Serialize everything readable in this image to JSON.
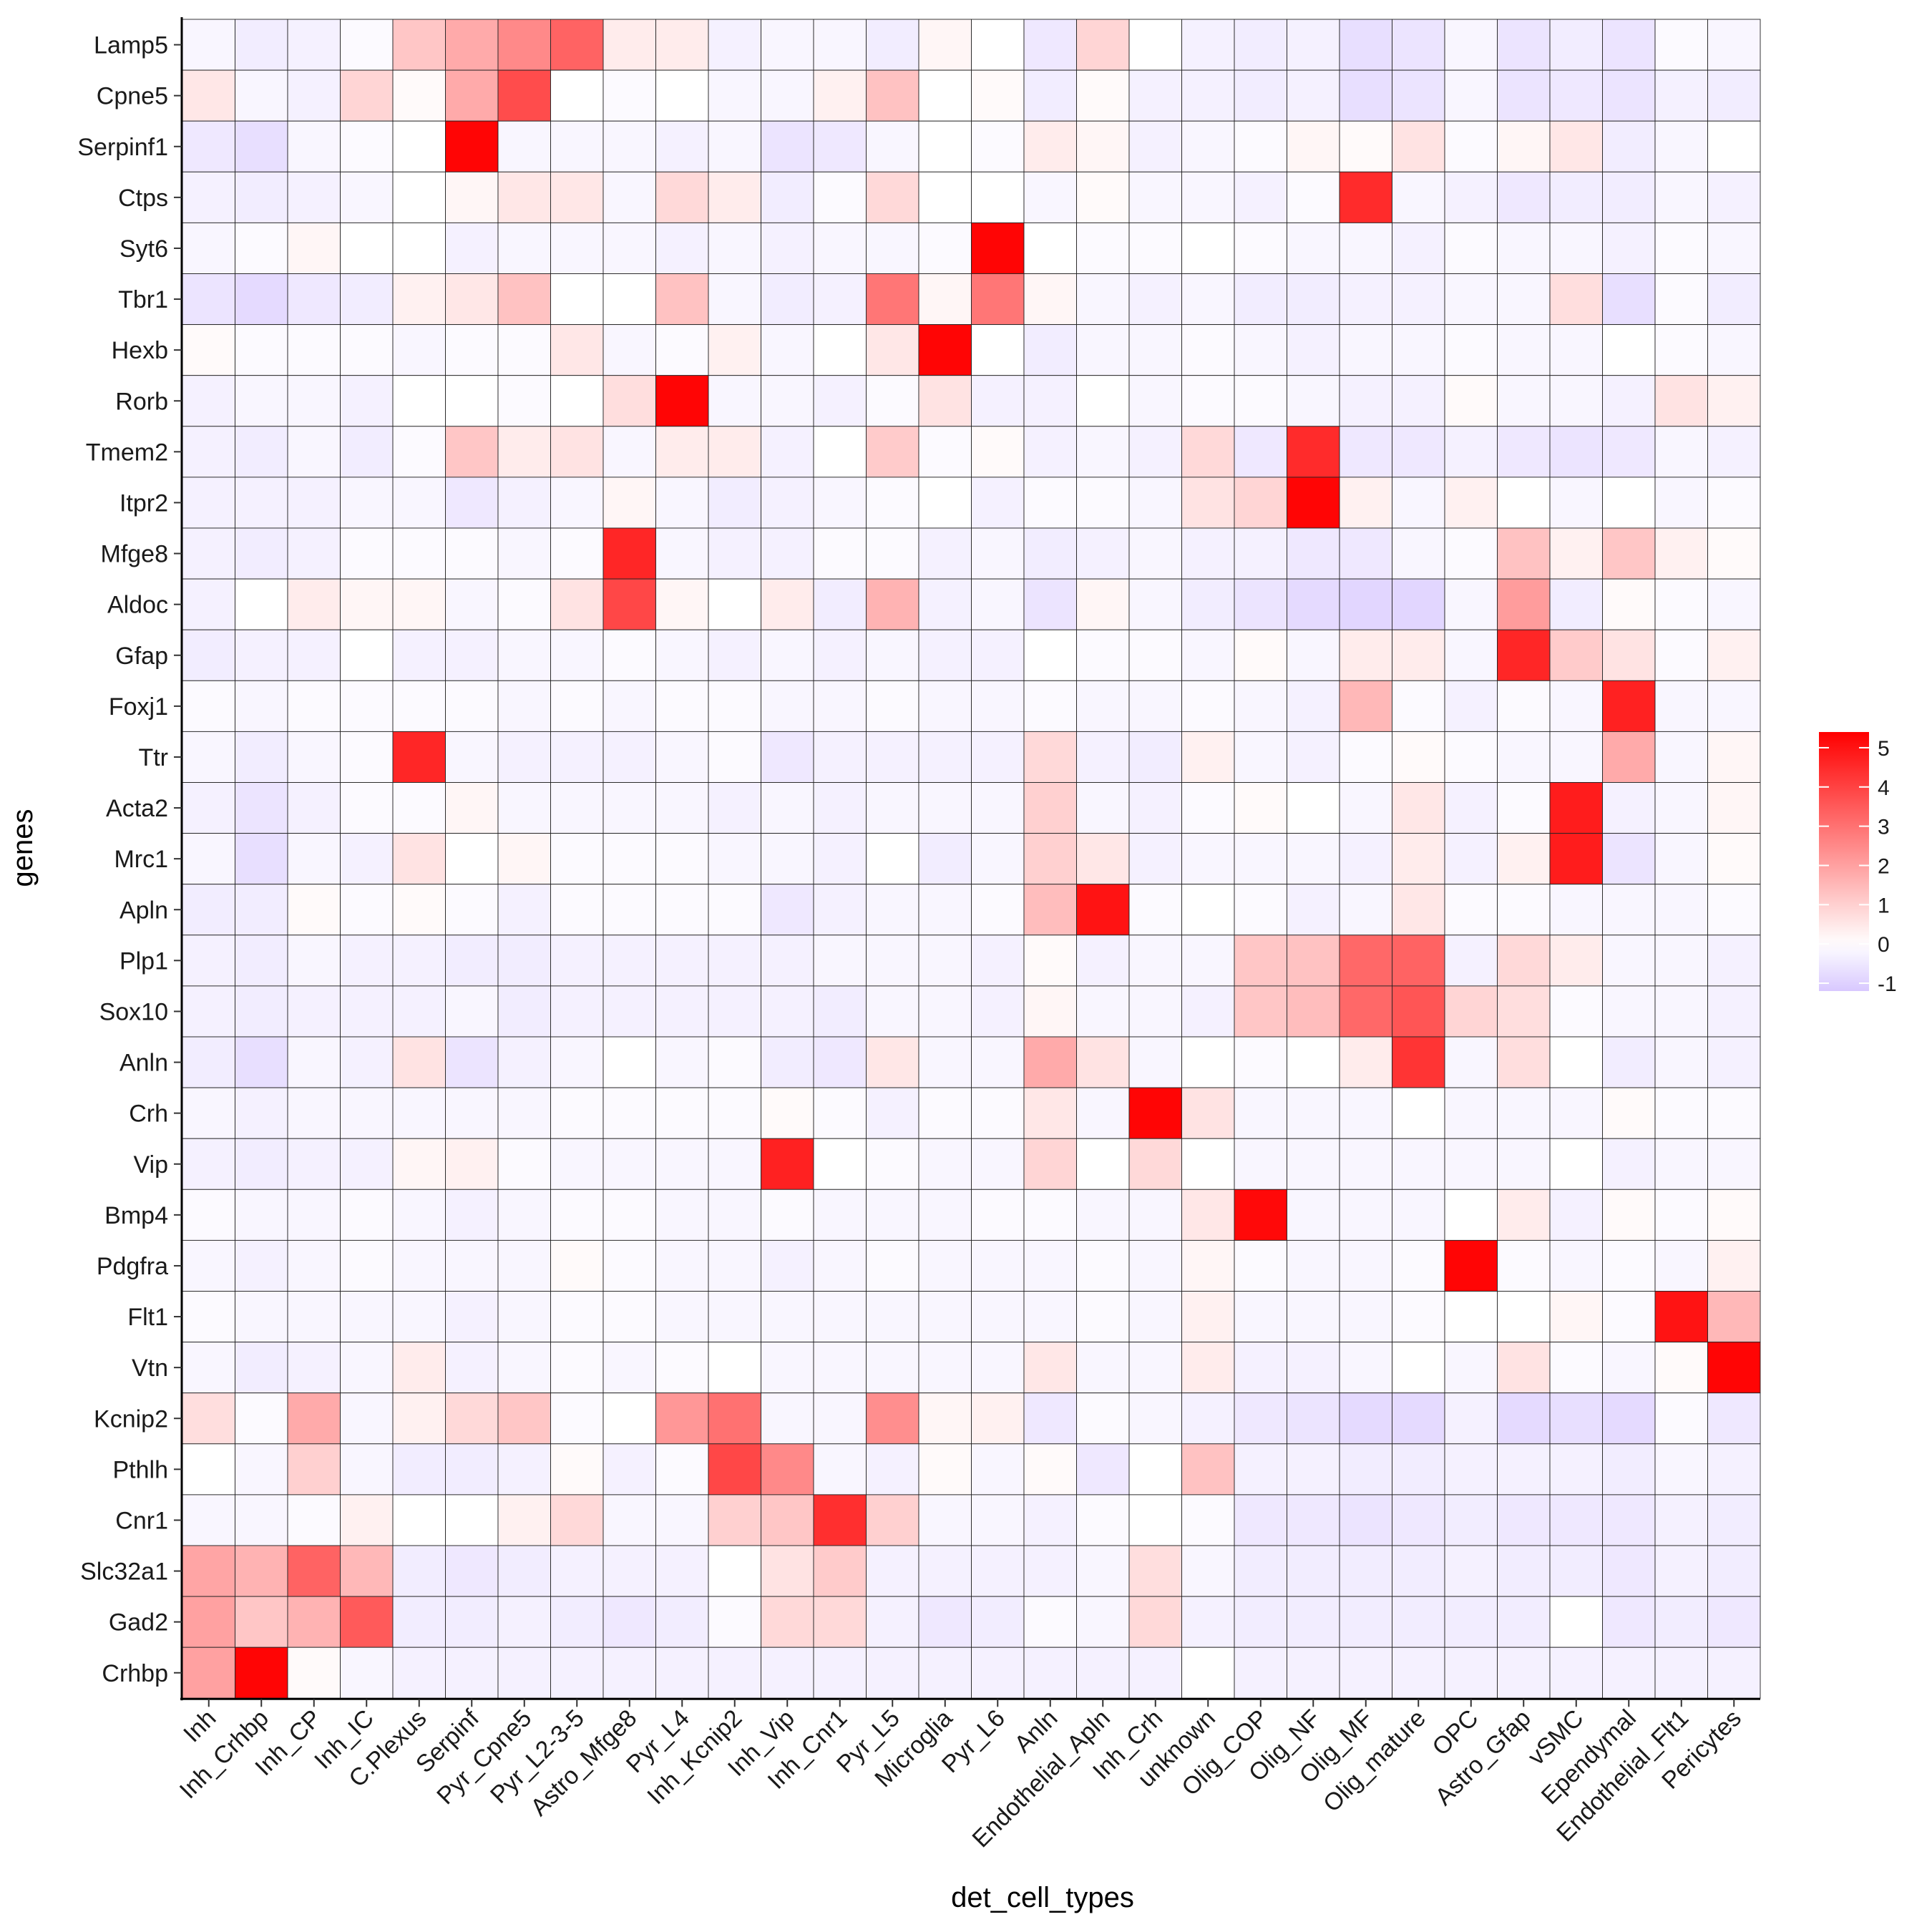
{
  "chart_data": {
    "type": "heatmap",
    "title": "",
    "xlabel": "det_cell_types",
    "ylabel": "genes",
    "grid": true,
    "legend_position": "right",
    "color_scale": {
      "low": "#d8c8ff",
      "mid": "#ffffff",
      "high": "#ff0000",
      "min": -1.2,
      "mid_value": 0,
      "max": 5.4,
      "ticks": [
        5,
        4,
        3,
        2,
        1,
        0,
        -1
      ]
    },
    "x_categories": [
      "Inh",
      "Inh_Crhbp",
      "Inh_CP",
      "Inh_IC",
      "C.Plexus",
      "Serpinf",
      "Pyr_Cpne5",
      "Pyr_L2-3-5",
      "Astro_Mfge8",
      "Pyr_L4",
      "Inh_Kcnip2",
      "Inh_Vip",
      "Inh_Cnr1",
      "Pyr_L5",
      "Microglia",
      "Pyr_L6",
      "Anln",
      "Endothelial_Apln",
      "Inh_Crh",
      "unknown",
      "Olig_COP",
      "Olig_NF",
      "Olig_MF",
      "Olig_mature",
      "OPC",
      "Astro_Gfap",
      "vSMC",
      "Ependymal",
      "Endothelial_Flt1",
      "Pericytes"
    ],
    "y_categories": [
      "Lamp5",
      "Cpne5",
      "Serpinf1",
      "Ctps",
      "Syt6",
      "Tbr1",
      "Hexb",
      "Rorb",
      "Tmem2",
      "Itpr2",
      "Mfge8",
      "Aldoc",
      "Gfap",
      "Foxj1",
      "Ttr",
      "Acta2",
      "Mrc1",
      "Apln",
      "Plp1",
      "Sox10",
      "Anln",
      "Crh",
      "Vip",
      "Bmp4",
      "Pdgfra",
      "Flt1",
      "Vtn",
      "Kcnip2",
      "Pthlh",
      "Cnr1",
      "Slc32a1",
      "Gad2",
      "Crhbp"
    ],
    "values": [
      [
        -0.2,
        -0.4,
        -0.3,
        -0.1,
        1.2,
        1.8,
        2.5,
        3.3,
        0.4,
        0.4,
        -0.3,
        -0.2,
        -0.2,
        -0.4,
        0.2,
        0,
        -0.5,
        0.9,
        0,
        -0.3,
        -0.4,
        -0.3,
        -0.7,
        -0.6,
        -0.2,
        -0.6,
        -0.4,
        -0.6,
        -0.1,
        -0.2
      ],
      [
        0.5,
        -0.2,
        -0.3,
        0.9,
        0.1,
        1.8,
        3.8,
        0,
        -0.1,
        0,
        -0.2,
        -0.2,
        0.3,
        1.3,
        0,
        0.1,
        -0.4,
        0.1,
        -0.3,
        -0.3,
        -0.4,
        -0.3,
        -0.7,
        -0.6,
        -0.2,
        -0.6,
        -0.5,
        -0.6,
        -0.3,
        -0.4
      ],
      [
        -0.5,
        -0.7,
        -0.2,
        -0.1,
        0,
        5.3,
        -0.2,
        -0.2,
        -0.2,
        -0.3,
        -0.2,
        -0.6,
        -0.5,
        -0.2,
        0,
        -0.1,
        0.4,
        0.2,
        -0.3,
        -0.2,
        -0.1,
        0.2,
        0.1,
        0.6,
        -0.1,
        0.2,
        0.5,
        -0.4,
        -0.2,
        0
      ],
      [
        -0.3,
        -0.4,
        -0.3,
        -0.2,
        0,
        0.2,
        0.5,
        0.5,
        -0.2,
        0.8,
        0.4,
        -0.4,
        -0.1,
        0.8,
        0,
        0,
        -0.2,
        0.1,
        -0.2,
        -0.2,
        -0.3,
        -0.1,
        4.5,
        -0.2,
        -0.3,
        -0.5,
        -0.4,
        -0.4,
        -0.2,
        -0.3
      ],
      [
        -0.2,
        -0.1,
        0.2,
        0,
        0,
        -0.3,
        -0.2,
        -0.2,
        -0.2,
        -0.3,
        -0.2,
        -0.3,
        -0.2,
        -0.2,
        -0.1,
        5.3,
        0,
        -0.1,
        -0.1,
        0,
        -0.1,
        -0.2,
        -0.2,
        -0.3,
        -0.1,
        -0.2,
        -0.2,
        -0.3,
        -0.1,
        -0.2
      ],
      [
        -0.6,
        -0.8,
        -0.5,
        -0.4,
        0.3,
        0.5,
        1.3,
        0,
        0,
        1.3,
        -0.2,
        -0.4,
        -0.3,
        2.9,
        0.2,
        2.9,
        0.2,
        -0.2,
        -0.3,
        -0.2,
        -0.4,
        -0.4,
        -0.3,
        -0.3,
        -0.2,
        -0.2,
        0.7,
        -0.7,
        -0.1,
        -0.4
      ],
      [
        0.1,
        -0.1,
        -0.1,
        -0.1,
        -0.2,
        -0.1,
        -0.1,
        0.5,
        -0.2,
        -0.1,
        0.3,
        -0.2,
        0,
        0.5,
        5.3,
        0,
        -0.4,
        -0.2,
        -0.2,
        -0.1,
        -0.2,
        -0.3,
        -0.2,
        -0.2,
        -0.1,
        -0.2,
        -0.2,
        0,
        -0.1,
        -0.2
      ],
      [
        -0.3,
        -0.2,
        -0.2,
        -0.3,
        0,
        0,
        -0.1,
        0,
        0.7,
        5.3,
        -0.2,
        -0.2,
        -0.3,
        -0.1,
        0.6,
        -0.3,
        -0.3,
        0,
        -0.2,
        -0.1,
        -0.1,
        -0.2,
        -0.3,
        -0.3,
        0.1,
        -0.2,
        -0.2,
        -0.3,
        0.6,
        0.3
      ],
      [
        -0.3,
        -0.4,
        -0.2,
        -0.4,
        -0.1,
        1.2,
        0.4,
        0.6,
        -0.2,
        0.4,
        0.4,
        -0.3,
        0,
        1.1,
        -0.1,
        0.1,
        -0.3,
        -0.2,
        -0.3,
        0.8,
        -0.5,
        4.5,
        -0.5,
        -0.5,
        -0.3,
        -0.5,
        -0.6,
        -0.5,
        -0.2,
        -0.3
      ],
      [
        -0.3,
        -0.3,
        -0.3,
        -0.2,
        -0.2,
        -0.5,
        -0.3,
        -0.2,
        0.2,
        -0.2,
        -0.4,
        -0.3,
        -0.2,
        -0.1,
        0,
        -0.3,
        -0.1,
        -0.1,
        -0.2,
        0.6,
        0.9,
        5.3,
        0.3,
        -0.2,
        0.3,
        0,
        -0.2,
        0,
        -0.2,
        -0.1
      ],
      [
        -0.3,
        -0.4,
        -0.3,
        -0.1,
        -0.1,
        -0.1,
        -0.2,
        -0.1,
        4.6,
        -0.2,
        -0.3,
        -0.3,
        -0.1,
        -0.1,
        -0.3,
        -0.2,
        -0.4,
        -0.3,
        -0.2,
        -0.3,
        -0.3,
        -0.5,
        -0.5,
        -0.2,
        -0.1,
        1.3,
        0.3,
        1.2,
        0.3,
        0.1
      ],
      [
        -0.3,
        0,
        0.4,
        0.2,
        0.2,
        -0.2,
        -0.1,
        0.6,
        3.9,
        0.2,
        0,
        0.4,
        -0.4,
        1.6,
        -0.3,
        -0.2,
        -0.6,
        0.2,
        -0.2,
        -0.4,
        -0.6,
        -0.8,
        -0.9,
        -0.9,
        -0.2,
        2.1,
        -0.4,
        0.1,
        -0.1,
        -0.2
      ],
      [
        -0.4,
        -0.3,
        -0.3,
        0,
        -0.3,
        -0.3,
        -0.2,
        -0.2,
        -0.1,
        -0.2,
        -0.3,
        -0.2,
        -0.3,
        -0.2,
        -0.3,
        -0.3,
        0,
        -0.1,
        -0.1,
        -0.2,
        0.1,
        -0.2,
        0.4,
        0.4,
        -0.2,
        4.6,
        1.1,
        0.6,
        -0.1,
        0.3
      ],
      [
        -0.1,
        -0.2,
        -0.1,
        -0.1,
        -0.1,
        -0.1,
        -0.2,
        -0.1,
        -0.2,
        -0.1,
        -0.1,
        -0.2,
        -0.2,
        -0.1,
        -0.2,
        -0.2,
        -0.1,
        -0.2,
        -0.2,
        -0.1,
        -0.2,
        -0.3,
        1.5,
        -0.1,
        -0.3,
        -0.1,
        -0.2,
        4.7,
        -0.2,
        -0.2
      ],
      [
        -0.2,
        -0.4,
        -0.2,
        -0.1,
        4.6,
        -0.2,
        -0.3,
        -0.3,
        -0.3,
        -0.2,
        -0.1,
        -0.5,
        -0.3,
        -0.3,
        -0.3,
        -0.3,
        0.8,
        -0.3,
        -0.4,
        0.3,
        -0.2,
        -0.3,
        -0.1,
        0.1,
        -0.1,
        -0.2,
        -0.2,
        1.8,
        -0.2,
        0.2
      ],
      [
        -0.3,
        -0.6,
        -0.3,
        -0.1,
        -0.1,
        0.2,
        -0.2,
        -0.2,
        -0.2,
        -0.2,
        -0.3,
        -0.2,
        -0.3,
        -0.2,
        -0.2,
        -0.2,
        1,
        -0.2,
        -0.3,
        -0.1,
        0.1,
        0,
        -0.2,
        0.5,
        -0.3,
        -0.1,
        4.8,
        -0.3,
        -0.2,
        0.2
      ],
      [
        -0.2,
        -0.7,
        -0.2,
        -0.3,
        0.6,
        0,
        0.2,
        -0.1,
        -0.1,
        -0.1,
        -0.2,
        -0.2,
        -0.3,
        0,
        -0.4,
        -0.2,
        1,
        0.5,
        -0.3,
        -0.2,
        -0.2,
        -0.2,
        -0.3,
        0.4,
        -0.3,
        0.3,
        4.8,
        -0.6,
        -0.2,
        0.1
      ],
      [
        -0.4,
        -0.4,
        0.1,
        -0.1,
        0.1,
        -0.1,
        -0.3,
        -0.1,
        -0.1,
        -0.1,
        -0.1,
        -0.5,
        -0.3,
        -0.2,
        -0.2,
        -0.1,
        1.4,
        5,
        -0.1,
        0,
        -0.1,
        -0.3,
        -0.2,
        0.5,
        -0.1,
        -0.1,
        -0.2,
        -0.2,
        -0.2,
        -0.1
      ],
      [
        -0.3,
        -0.4,
        -0.2,
        -0.3,
        -0.3,
        -0.4,
        -0.4,
        -0.3,
        -0.3,
        -0.3,
        -0.3,
        -0.3,
        -0.2,
        -0.2,
        -0.2,
        -0.3,
        0.1,
        -0.3,
        -0.2,
        -0.2,
        1.2,
        1.3,
        3.2,
        3.3,
        -0.3,
        0.8,
        0.4,
        -0.2,
        -0.2,
        -0.3
      ],
      [
        -0.3,
        -0.4,
        -0.3,
        -0.3,
        -0.3,
        -0.2,
        -0.4,
        -0.3,
        -0.3,
        -0.3,
        -0.3,
        -0.3,
        -0.4,
        -0.2,
        -0.2,
        -0.3,
        0.2,
        -0.2,
        -0.2,
        -0.3,
        1.2,
        1.4,
        3.2,
        3.6,
        0.9,
        0.7,
        -0.1,
        -0.2,
        -0.2,
        -0.3
      ],
      [
        -0.4,
        -0.7,
        -0.2,
        -0.3,
        0.6,
        -0.6,
        -0.3,
        -0.2,
        0,
        -0.2,
        -0.1,
        -0.4,
        -0.5,
        0.5,
        -0.2,
        -0.2,
        1.8,
        0.6,
        -0.2,
        0,
        -0.1,
        0,
        0.4,
        4.3,
        -0.2,
        0.7,
        0,
        -0.4,
        -0.2,
        -0.3
      ],
      [
        -0.2,
        -0.3,
        -0.2,
        -0.2,
        -0.2,
        -0.2,
        -0.2,
        -0.1,
        -0.1,
        -0.1,
        -0.1,
        0.1,
        -0.1,
        -0.3,
        -0.1,
        -0.1,
        0.5,
        -0.2,
        5.3,
        0.6,
        -0.2,
        -0.2,
        -0.2,
        0,
        -0.2,
        -0.2,
        -0.2,
        0.1,
        -0.1,
        -0.1
      ],
      [
        -0.3,
        -0.4,
        -0.3,
        -0.3,
        0.2,
        0.3,
        -0.1,
        -0.2,
        -0.2,
        -0.2,
        -0.2,
        4.7,
        0,
        -0.1,
        -0.2,
        -0.2,
        0.9,
        0,
        0.8,
        0,
        -0.2,
        -0.2,
        -0.2,
        -0.2,
        -0.2,
        -0.2,
        0,
        -0.3,
        -0.2,
        -0.2
      ],
      [
        -0.1,
        -0.2,
        -0.2,
        -0.1,
        -0.2,
        -0.3,
        -0.2,
        -0.1,
        -0.1,
        -0.2,
        -0.2,
        -0.1,
        -0.2,
        -0.2,
        -0.2,
        -0.1,
        -0.1,
        -0.2,
        -0.2,
        0.5,
        5.2,
        -0.2,
        -0.2,
        -0.2,
        0,
        0.4,
        -0.3,
        0.1,
        -0.1,
        0.1
      ],
      [
        -0.2,
        -0.3,
        -0.2,
        -0.1,
        -0.2,
        -0.2,
        -0.2,
        0.1,
        -0.1,
        -0.2,
        -0.2,
        -0.3,
        -0.2,
        -0.1,
        -0.2,
        -0.2,
        -0.2,
        -0.1,
        -0.2,
        0.2,
        -0.1,
        -0.2,
        -0.2,
        -0.1,
        5.3,
        -0.1,
        -0.2,
        -0.1,
        -0.2,
        0.3
      ],
      [
        -0.1,
        -0.2,
        -0.2,
        -0.2,
        -0.2,
        -0.3,
        -0.2,
        -0.1,
        -0.1,
        -0.2,
        -0.2,
        -0.2,
        -0.2,
        -0.2,
        -0.2,
        -0.2,
        -0.2,
        -0.1,
        -0.2,
        0.3,
        -0.2,
        -0.2,
        -0.2,
        -0.1,
        0,
        0,
        0.2,
        -0.1,
        5,
        1.5
      ],
      [
        -0.2,
        -0.4,
        -0.3,
        -0.2,
        0.4,
        -0.3,
        -0.2,
        -0.1,
        -0.2,
        -0.1,
        0,
        -0.2,
        -0.2,
        -0.2,
        -0.2,
        -0.2,
        0.5,
        -0.2,
        -0.2,
        0.4,
        -0.3,
        -0.3,
        -0.2,
        0,
        -0.2,
        0.6,
        -0.1,
        -0.2,
        0.1,
        5.3
      ],
      [
        0.7,
        -0.1,
        1.8,
        -0.2,
        0.3,
        0.8,
        1.2,
        -0.1,
        0,
        2.2,
        3,
        -0.2,
        -0.2,
        2.4,
        0.2,
        0.3,
        -0.5,
        -0.1,
        -0.2,
        -0.3,
        -0.5,
        -0.6,
        -0.8,
        -0.8,
        -0.3,
        -0.8,
        -0.7,
        -0.8,
        -0.1,
        -0.5
      ],
      [
        0,
        -0.2,
        1,
        -0.2,
        -0.4,
        -0.4,
        -0.3,
        0.1,
        -0.3,
        -0.1,
        3.9,
        2.5,
        -0.2,
        -0.3,
        0.1,
        -0.2,
        0.1,
        -0.5,
        0,
        1.3,
        -0.3,
        -0.3,
        -0.4,
        -0.4,
        -0.3,
        -0.3,
        -0.3,
        -0.4,
        -0.2,
        -0.3
      ],
      [
        -0.2,
        -0.2,
        -0.1,
        0.3,
        0,
        0,
        0.3,
        0.8,
        -0.2,
        -0.2,
        1,
        1.2,
        4.4,
        1,
        -0.2,
        -0.2,
        -0.3,
        -0.1,
        0,
        -0.1,
        -0.5,
        -0.5,
        -0.6,
        -0.5,
        -0.4,
        -0.5,
        -0.5,
        -0.5,
        -0.3,
        -0.4
      ],
      [
        1.9,
        1.6,
        3.3,
        1.5,
        -0.4,
        -0.5,
        -0.4,
        -0.3,
        -0.3,
        -0.3,
        0,
        0.6,
        1.1,
        -0.3,
        -0.3,
        -0.3,
        -0.3,
        -0.2,
        0.7,
        -0.2,
        -0.4,
        -0.4,
        -0.4,
        -0.4,
        -0.3,
        -0.4,
        -0.4,
        -0.5,
        -0.3,
        -0.4
      ],
      [
        2,
        1.2,
        1.6,
        3.5,
        -0.4,
        -0.4,
        -0.3,
        -0.4,
        -0.5,
        -0.4,
        -0.1,
        0.8,
        0.8,
        -0.3,
        -0.5,
        -0.4,
        -0.1,
        -0.2,
        0.8,
        -0.3,
        -0.4,
        -0.4,
        -0.4,
        -0.4,
        -0.4,
        -0.4,
        0,
        -0.5,
        -0.4,
        -0.5
      ],
      [
        2,
        5.3,
        0.1,
        -0.2,
        -0.3,
        -0.3,
        -0.3,
        -0.3,
        -0.3,
        -0.3,
        -0.3,
        -0.3,
        -0.3,
        -0.3,
        -0.3,
        -0.3,
        -0.3,
        -0.3,
        -0.3,
        0,
        -0.3,
        -0.3,
        -0.3,
        -0.3,
        -0.3,
        -0.3,
        -0.3,
        -0.3,
        -0.3,
        -0.3
      ]
    ]
  }
}
